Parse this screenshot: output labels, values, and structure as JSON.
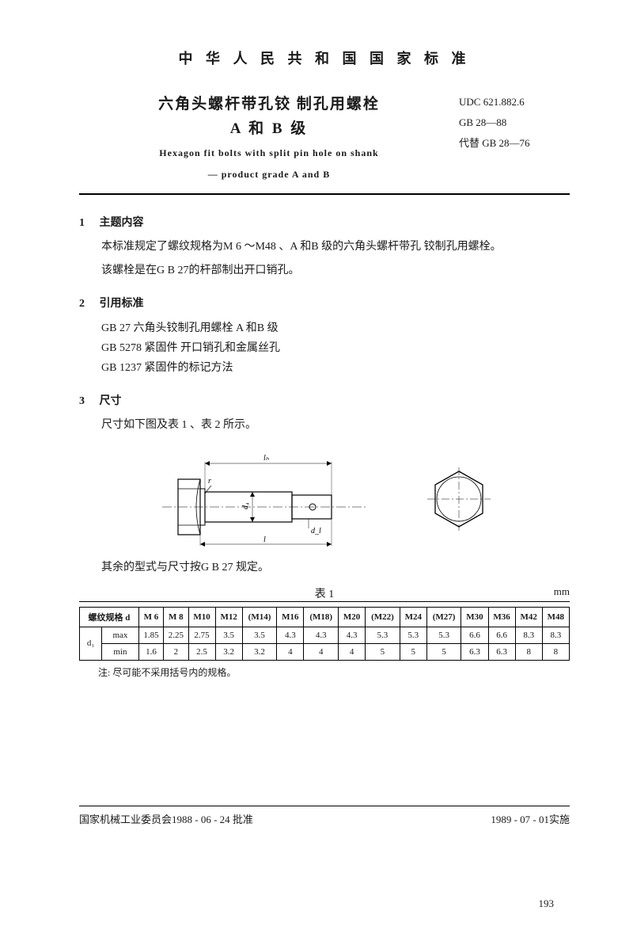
{
  "header": "中 华 人 民 共 和 国 国 家 标 准",
  "title_cn_1": "六角头螺杆带孔铰 制孔用螺栓",
  "title_cn_2": "A 和 B  级",
  "title_en_1": "Hexagon fit bolts  with split  pin  hole on shank",
  "title_en_2": "— product  grade  A  and  B",
  "refs_right": {
    "udc": "UDC  621.882.6",
    "gb": "GB  28—88",
    "supersede": "代替  GB  28—76"
  },
  "s1": {
    "num": "1",
    "title": "主题内容",
    "p1": "本标准规定了螺纹规格为M 6 ～M48 、A 和B 级的六角头螺杆带孔 铰制孔用螺栓。",
    "p2": "该螺栓是在G B  27的杆部制出开口销孔。"
  },
  "s2": {
    "num": "2",
    "title": "引用标准",
    "r1": "GB  27    六角头铰制孔用螺栓    A 和B  级",
    "r2": "GB  5278   紧固件    开口销孔和金属丝孔",
    "r3": "GB  1237   紧固件的标记方法"
  },
  "s3": {
    "num": "3",
    "title": "尺寸",
    "p1": "尺寸如下图及表 1 、表 2 所示。"
  },
  "diagram": {
    "lh": "lₕ",
    "r": "r",
    "d4": "d₄",
    "dl": "d_l",
    "l": "l"
  },
  "note_after_diagram": "其余的型式与尺寸按G B 27 规定。",
  "table1": {
    "caption": "表 1",
    "unit": "mm",
    "spec_label": "螺纹规格 d",
    "d1_label": "d₁",
    "max": "max",
    "min": "min",
    "sizes": [
      "M 6",
      "M 8",
      "M10",
      "M12",
      "(M14)",
      "M16",
      "(M18)",
      "M20",
      "(M22)",
      "M24",
      "(M27)",
      "M30",
      "M36",
      "M42",
      "M48"
    ],
    "max_row": [
      "1.85",
      "2.25",
      "2.75",
      "3.5",
      "3.5",
      "4.3",
      "4.3",
      "4.3",
      "5.3",
      "5.3",
      "5.3",
      "6.6",
      "6.6",
      "8.3",
      "8.3"
    ],
    "min_row": [
      "1.6",
      "2",
      "2.5",
      "3.2",
      "3.2",
      "4",
      "4",
      "4",
      "5",
      "5",
      "5",
      "6.3",
      "6.3",
      "8",
      "8"
    ],
    "note": "注:  尽可能不采用括号内的规格。"
  },
  "footer": {
    "left": "国家机械工业委员会1988 - 06 - 24 批准",
    "right": "1989 - 07 - 01实施"
  },
  "page_num": "193"
}
